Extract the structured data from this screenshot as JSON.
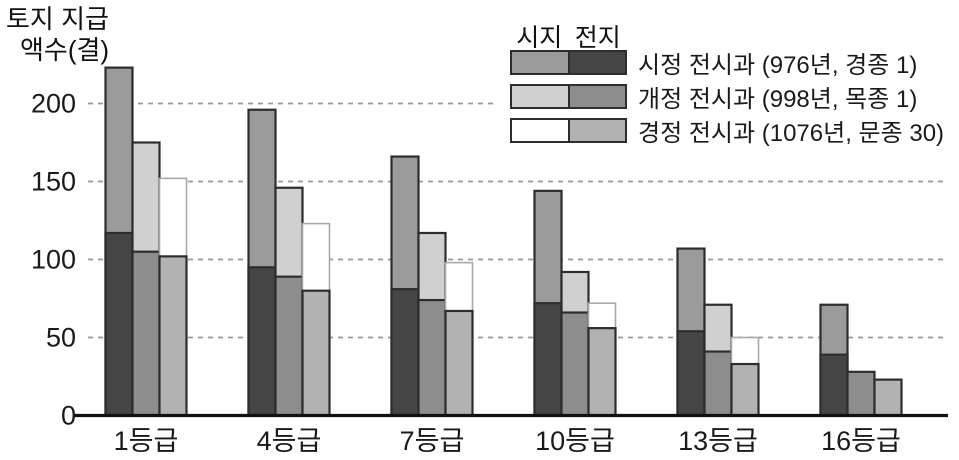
{
  "figure": {
    "background": "#ffffff"
  },
  "y_axis": {
    "title_lines": [
      "토지 지급",
      "액수(결)"
    ],
    "tick_labels": [
      200,
      150,
      100,
      50,
      0
    ]
  },
  "legend": {
    "column_headers": [
      "시지",
      "전지"
    ],
    "items": [
      {
        "label": "시정 전시과 (976년, 경종 1)"
      },
      {
        "label": "개정 전시과 (998년, 목종 1)"
      },
      {
        "label": "경정 전시과 (1076년, 문종 30)"
      }
    ]
  },
  "colors": {
    "axis": "#111111",
    "grid": "#999999",
    "text": "#1a1a1a",
    "bar_stroke": "#2d2d2d",
    "white_segment_stroke": "#a9a9a9"
  },
  "chart_data": {
    "type": "bar",
    "stacked": true,
    "title": "토지 지급 액수(결)",
    "ylabel": "토지 지급 액수(결)",
    "xlabel": "등급",
    "ylim": [
      0,
      230
    ],
    "yticks": [
      0,
      50,
      100,
      150,
      200
    ],
    "grid": "dashed-horizontal",
    "legend_position": "top-right",
    "stack_order_bottom_to_top": [
      "전지",
      "시지"
    ],
    "categories": [
      "1등급",
      "4등급",
      "7등급",
      "10등급",
      "13등급",
      "16등급"
    ],
    "series": [
      {
        "name": "시정 전시과 (976년, 경종 1)",
        "siji_color": "#9b9b9b",
        "jeonji_color": "#454545",
        "jeonji": [
          117,
          95,
          81,
          72,
          54,
          39
        ],
        "siji": [
          106,
          101,
          85,
          72,
          53,
          32
        ],
        "totals": [
          223,
          196,
          166,
          144,
          107,
          71
        ]
      },
      {
        "name": "개정 전시과 (998년, 목종 1)",
        "siji_color": "#d0d0d0",
        "jeonji_color": "#8d8d8d",
        "jeonji": [
          105,
          89,
          74,
          66,
          41,
          28
        ],
        "siji": [
          70,
          57,
          43,
          26,
          30,
          0
        ],
        "totals": [
          175,
          146,
          117,
          92,
          71,
          28
        ]
      },
      {
        "name": "경정 전시과 (1076년, 문종 30)",
        "siji_color": "#ffffff",
        "jeonji_color": "#b2b2b2",
        "jeonji": [
          102,
          80,
          67,
          56,
          33,
          23
        ],
        "siji": [
          50,
          43,
          31,
          16,
          17,
          0
        ],
        "totals": [
          152,
          123,
          98,
          72,
          50,
          23
        ]
      }
    ]
  }
}
